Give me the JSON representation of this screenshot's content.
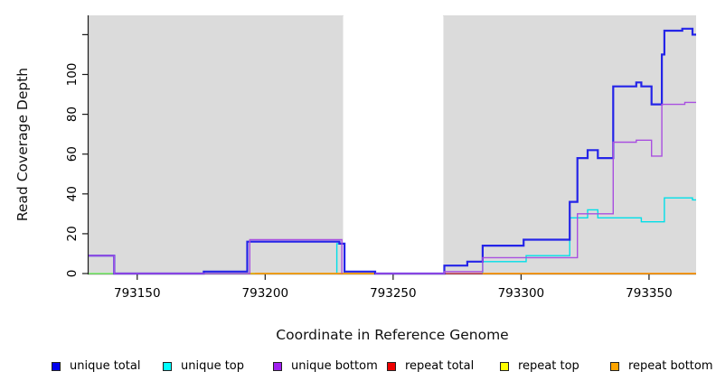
{
  "chart_data": {
    "type": "line",
    "subtype": "step-coverage",
    "title": "",
    "xlabel": "Coordinate in Reference Genome",
    "ylabel": "Read Coverage Depth",
    "xlim": [
      793131,
      793368.4
    ],
    "ylim": [
      0,
      129.7
    ],
    "grid": false,
    "x_ticks": [
      793150,
      793200,
      793250,
      793300,
      793350
    ],
    "x_tick_labels": [
      "793150",
      "793200",
      "793250",
      "793300",
      "793350"
    ],
    "y_ticks": [
      0,
      20,
      40,
      60,
      80,
      100,
      120
    ],
    "y_tick_labels": [
      "0",
      "20",
      "40",
      "60",
      "80",
      "100",
      ""
    ],
    "plot_background": "#ffffff",
    "shaded_bands": [
      {
        "x0": 793131,
        "x1": 793230.5,
        "color": "#dbdbdb"
      },
      {
        "x0": 793269.6,
        "x1": 793368.4,
        "color": "#dbdbdb"
      }
    ],
    "white_gap": {
      "x0": 793230.5,
      "x1": 793269.6
    },
    "axis_color": "#1a1a1a",
    "frame_color": "#8f8f8f",
    "series": [
      {
        "name": "unique top",
        "color": "#00dfe8",
        "width": 1.4,
        "opacity": 1,
        "segments": [
          [
            [
              793131,
              0
            ],
            [
              793228,
              15
            ],
            [
              793231,
              0
            ],
            [
              793285,
              6
            ],
            [
              793302,
              9
            ],
            [
              793319,
              28
            ],
            [
              793326,
              32
            ],
            [
              793330,
              28
            ],
            [
              793347,
              26
            ],
            [
              793356,
              38
            ],
            [
              793367,
              37
            ],
            [
              793368.4,
              37
            ]
          ]
        ]
      },
      {
        "name": "repeat top",
        "color": "#ffff00",
        "width": 1.6,
        "opacity": 0.55,
        "segments": [
          [
            [
              793131,
              0
            ],
            [
              793270,
              0
            ]
          ]
        ]
      },
      {
        "name": "repeat total",
        "color": "#e83a4e",
        "width": 1.4,
        "opacity": 1,
        "segments": [
          [
            [
              793196,
              0
            ],
            [
              793368.4,
              0
            ]
          ]
        ]
      },
      {
        "name": "repeat bottom",
        "color": "#ffa500",
        "width": 1.6,
        "opacity": 1,
        "segments": [
          [
            [
              793193,
              0
            ],
            [
              793270,
              0
            ]
          ],
          [
            [
              793285,
              0
            ],
            [
              793368.4,
              0
            ]
          ]
        ]
      },
      {
        "name": "unique total",
        "color": "#2424e8",
        "width": 2.2,
        "opacity": 1,
        "segments": [
          [
            [
              793131,
              9
            ],
            [
              793141,
              0
            ],
            [
              793176,
              1
            ],
            [
              793193,
              16
            ],
            [
              793229,
              15
            ],
            [
              793231,
              1
            ],
            [
              793243,
              0
            ],
            [
              793270,
              4
            ],
            [
              793279,
              6
            ],
            [
              793285,
              14
            ],
            [
              793301,
              17
            ],
            [
              793319,
              36
            ],
            [
              793322,
              58
            ],
            [
              793326,
              62
            ],
            [
              793330,
              58
            ],
            [
              793336,
              94
            ],
            [
              793345,
              96
            ],
            [
              793347,
              94
            ],
            [
              793351,
              85
            ],
            [
              793355,
              110
            ],
            [
              793356,
              122
            ],
            [
              793363,
              123
            ],
            [
              793367,
              120
            ],
            [
              793368.4,
              120
            ]
          ]
        ]
      },
      {
        "name": "unique bottom",
        "color": "#a94fe0",
        "width": 1.4,
        "opacity": 1,
        "segments": [
          [
            [
              793131,
              9
            ],
            [
              793141,
              0
            ],
            [
              793194,
              17
            ],
            [
              793230,
              0
            ]
          ],
          [
            [
              793243,
              0
            ],
            [
              793270,
              1
            ],
            [
              793285,
              8
            ],
            [
              793322,
              30
            ],
            [
              793336,
              66
            ],
            [
              793345,
              67
            ],
            [
              793351,
              59
            ],
            [
              793355,
              85
            ],
            [
              793364,
              86
            ],
            [
              793368.4,
              86
            ]
          ]
        ]
      }
    ],
    "legend": {
      "position": "bottom",
      "entries": [
        {
          "label": "unique total",
          "color": "#0000ee"
        },
        {
          "label": "unique top",
          "color": "#00ffff"
        },
        {
          "label": "unique bottom",
          "color": "#a020f0"
        },
        {
          "label": "repeat total",
          "color": "#ee0000"
        },
        {
          "label": "repeat top",
          "color": "#ffff00"
        },
        {
          "label": "repeat bottom",
          "color": "#ffa500"
        }
      ]
    }
  }
}
